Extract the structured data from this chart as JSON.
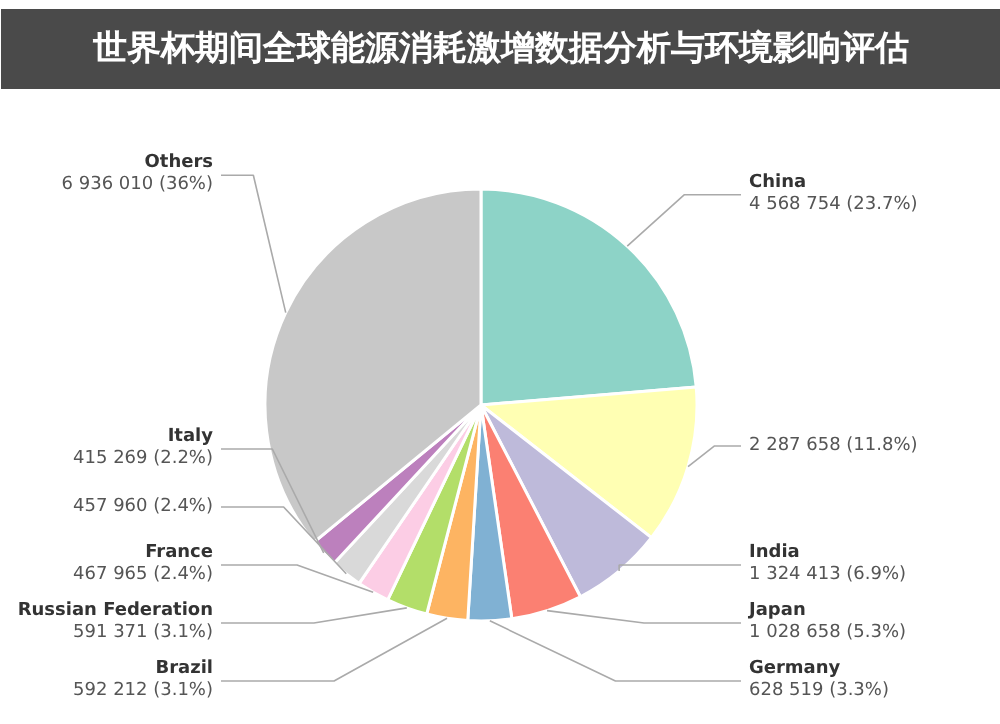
{
  "chart_data": {
    "type": "pie",
    "title": "世界杯期间全球能源消耗激增数据分析与环境影响评估",
    "categories": [
      "China",
      null,
      "India",
      "Japan",
      "Germany",
      "Brazil",
      "Russian Federation",
      "France",
      null,
      "Italy",
      "Others"
    ],
    "values": [
      4568754,
      2287658,
      1324413,
      1028658,
      628519,
      592212,
      591371,
      467965,
      457960,
      415269,
      6936010
    ],
    "value_labels": [
      "4 568 754 (23.7%)",
      "2 287 658 (11.8%)",
      "1 324 413 (6.9%)",
      "1 028 658 (5.3%)",
      "628 519 (3.3%)",
      "592 212 (3.1%)",
      "591 371 (3.1%)",
      "467 965 (2.4%)",
      "457 960 (2.4%)",
      "415 269 (2.2%)",
      "6 936 010 (36%)"
    ],
    "colors": [
      "#8dd3c7",
      "#ffffb3",
      "#bebada",
      "#fb8072",
      "#80b1d3",
      "#fdb462",
      "#b3de69",
      "#fccde5",
      "#d9d9d9",
      "#bc80bd",
      "#c8c8c8"
    ]
  }
}
